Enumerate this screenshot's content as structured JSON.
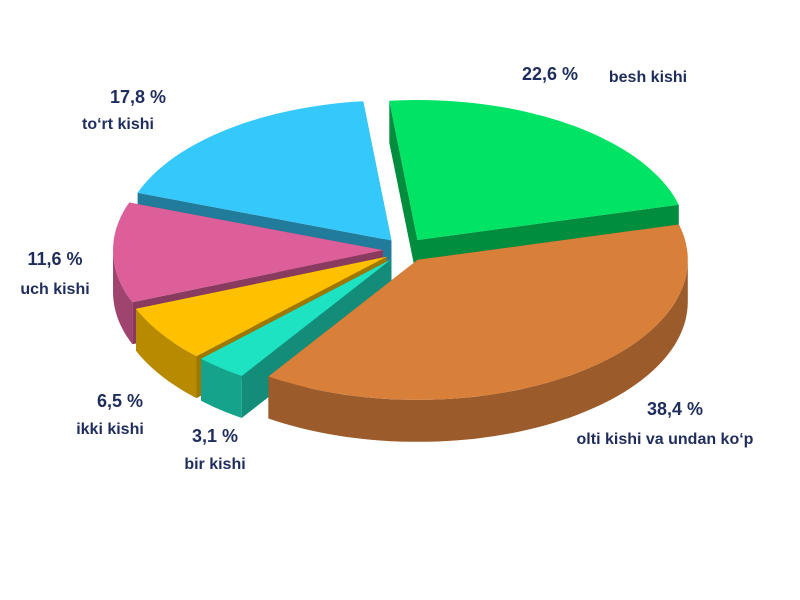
{
  "chart_data": {
    "type": "pie",
    "categories": [
      "besh kishi",
      "olti kishi va undan ko‘p",
      "bir kishi",
      "ikki kishi",
      "uch kishi",
      "to‘rt kishi"
    ],
    "values": [
      22.6,
      38.4,
      3.1,
      6.5,
      11.6,
      17.8
    ],
    "value_labels": [
      "22,6 %",
      "38,4 %",
      "3,1 %",
      "6,5 %",
      "11,6 %",
      "17,8 %"
    ],
    "colors": [
      "#00e364",
      "#d87f3a",
      "#1ee3c3",
      "#ffc000",
      "#dd5f99",
      "#35c8fb"
    ]
  }
}
